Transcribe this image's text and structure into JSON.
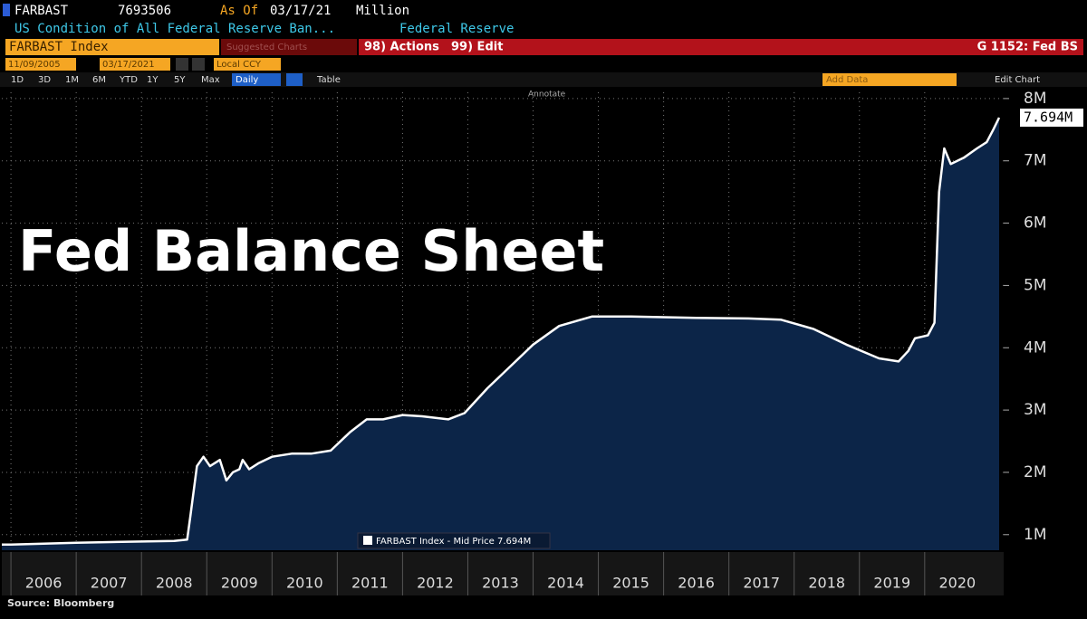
{
  "terminal": {
    "ticker": "FARBAST",
    "last": "7693506",
    "as_of_label": "As Of",
    "as_of": "03/17/21",
    "units": "Million",
    "description": "US Condition of All Federal Reserve Ban...",
    "source_name": "Federal Reserve",
    "security": "FARBAST Index",
    "suggested": "Suggested Charts",
    "actions": "98) Actions",
    "edit": "99) Edit",
    "chart_id": "G 1152: Fed BS",
    "start_date": "11/09/2005",
    "end_date": "03/17/2021",
    "currency": "Local CCY",
    "timespans": [
      "1D",
      "3D",
      "1M",
      "6M",
      "YTD",
      "1Y",
      "5Y",
      "Max"
    ],
    "frequency": "Daily",
    "table": "Table",
    "add_data": "Add Data",
    "edit_chart": "Edit Chart",
    "annotate": "Annotate"
  },
  "chart_data": {
    "type": "area",
    "annotation": "Fed Balance Sheet",
    "source": "Source: Bloomberg",
    "last_label": "7.694M",
    "x": [
      2005.86,
      2006.0,
      2007.0,
      2008.0,
      2008.5,
      2008.7,
      2008.75,
      2008.85,
      2008.95,
      2009.05,
      2009.2,
      2009.3,
      2009.4,
      2009.5,
      2009.55,
      2009.65,
      2009.8,
      2010.0,
      2010.3,
      2010.6,
      2010.9,
      2011.2,
      2011.45,
      2011.7,
      2012.0,
      2012.3,
      2012.7,
      2012.95,
      2013.3,
      2013.7,
      2014.0,
      2014.4,
      2014.9,
      2015.5,
      2016.5,
      2017.3,
      2017.8,
      2018.3,
      2018.8,
      2019.3,
      2019.6,
      2019.75,
      2019.85,
      2020.05,
      2020.15,
      2020.22,
      2020.3,
      2020.4,
      2020.6,
      2020.8,
      2020.95,
      2021.05,
      2021.14
    ],
    "series": [
      {
        "name": "FARBAST Index - Mid Price 7.694M",
        "color": "#ffffff",
        "fill": "#0c2548",
        "values": [
          840000,
          840000,
          870000,
          890000,
          900000,
          920000,
          1300000,
          2100000,
          2250000,
          2100000,
          2200000,
          1870000,
          2000000,
          2050000,
          2200000,
          2050000,
          2150000,
          2250000,
          2300000,
          2300000,
          2350000,
          2650000,
          2850000,
          2850000,
          2920000,
          2900000,
          2850000,
          2950000,
          3350000,
          3750000,
          4050000,
          4350000,
          4500000,
          4500000,
          4480000,
          4470000,
          4450000,
          4300000,
          4050000,
          3830000,
          3780000,
          3950000,
          4150000,
          4200000,
          4400000,
          6500000,
          7200000,
          6950000,
          7050000,
          7200000,
          7300000,
          7500000,
          7693506
        ]
      }
    ],
    "xlim": [
      2005.86,
      2021.21
    ],
    "xticks": [
      2006,
      2007,
      2008,
      2009,
      2010,
      2011,
      2012,
      2013,
      2014,
      2015,
      2016,
      2017,
      2018,
      2019,
      2020
    ],
    "ylim": [
      750000,
      8100000
    ],
    "yticks": [
      {
        "value": 1000000,
        "label": "1M"
      },
      {
        "value": 2000000,
        "label": "2M"
      },
      {
        "value": 3000000,
        "label": "3M"
      },
      {
        "value": 4000000,
        "label": "4M"
      },
      {
        "value": 5000000,
        "label": "5M"
      },
      {
        "value": 6000000,
        "label": "6M"
      },
      {
        "value": 7000000,
        "label": "7M"
      },
      {
        "value": 8000000,
        "label": "8M"
      }
    ],
    "grid": true
  }
}
